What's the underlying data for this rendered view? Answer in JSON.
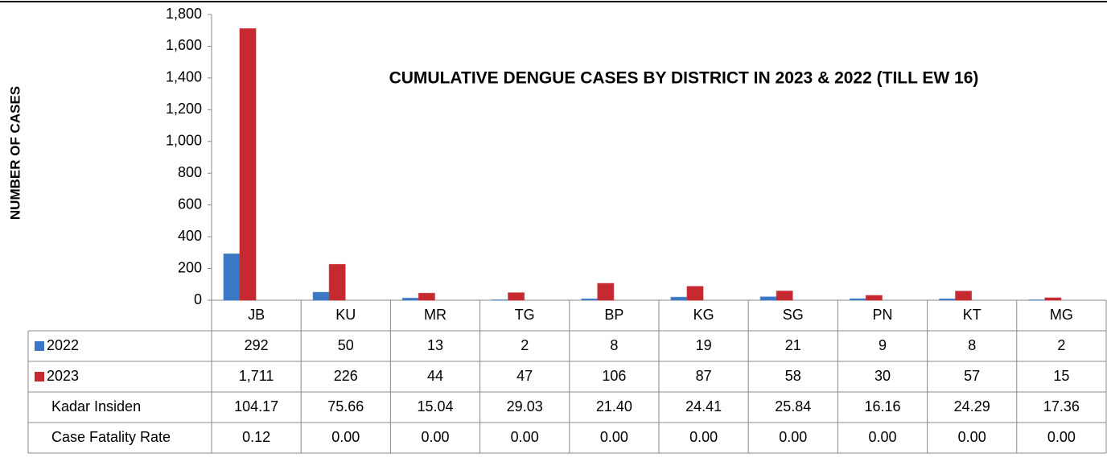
{
  "chart_data": {
    "type": "bar",
    "title": "CUMULATIVE DENGUE CASES BY DISTRICT IN 2023 & 2022 (TILL EW 16)",
    "y_label": "NUMBER OF CASES",
    "categories": [
      "JB",
      "KU",
      "MR",
      "TG",
      "BP",
      "KG",
      "SG",
      "PN",
      "KT",
      "MG"
    ],
    "series": [
      {
        "name": "2022",
        "color": "#3a78c6",
        "values": [
          292,
          50,
          13,
          2,
          8,
          19,
          21,
          9,
          8,
          2
        ]
      },
      {
        "name": "2023",
        "color": "#c62a30",
        "values": [
          1711,
          226,
          44,
          47,
          106,
          87,
          58,
          30,
          57,
          15
        ],
        "value_labels": [
          "1,711",
          "226",
          "44",
          "47",
          "106",
          "87",
          "58",
          "30",
          "57",
          "15"
        ]
      }
    ],
    "table_rows": [
      {
        "name": "Kadar Insiden",
        "values": [
          "104.17",
          "75.66",
          "15.04",
          "29.03",
          "21.40",
          "24.41",
          "25.84",
          "16.16",
          "24.29",
          "17.36"
        ]
      },
      {
        "name": "Case Fatality Rate",
        "values": [
          "0.12",
          "0.00",
          "0.00",
          "0.00",
          "0.00",
          "0.00",
          "0.00",
          "0.00",
          "0.00",
          "0.00"
        ]
      }
    ],
    "ylim": [
      0,
      1800
    ],
    "yticks": [
      0,
      200,
      400,
      600,
      800,
      {
        "value": 1000,
        "label": "1,000"
      },
      {
        "value": 1200,
        "label": "1,200"
      },
      {
        "value": 1400,
        "label": "1,400"
      },
      {
        "value": 1600,
        "label": "1,600"
      },
      {
        "value": 1800,
        "label": "1,800"
      }
    ],
    "grid": false
  }
}
